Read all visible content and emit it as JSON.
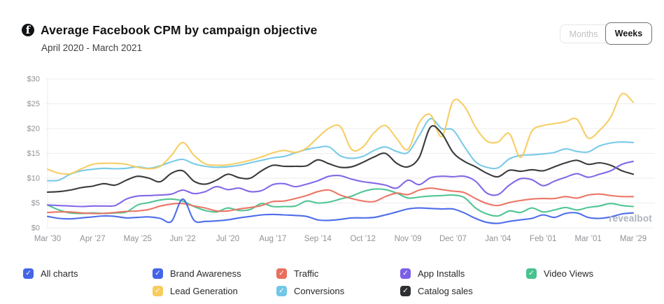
{
  "header": {
    "title": "Average Facebook CPM by campaign objective",
    "subtitle": "April 2020 - March 2021",
    "brand_icon": "facebook-icon",
    "toggle": {
      "options": [
        "Months",
        "Weeks"
      ],
      "selected": "Weeks"
    }
  },
  "watermark": "revealbot",
  "chart_data": {
    "type": "line",
    "title": "Average Facebook CPM by campaign objective",
    "subtitle": "April 2020 - March 2021",
    "x_unit": "week",
    "points_per_series": 53,
    "x_tick_labels": [
      "Mar ’30",
      "Apr ’27",
      "May ’25",
      "Jun ’22",
      "Jul ’20",
      "Aug ’17",
      "Sep ’14",
      "Oct ’12",
      "Nov ’09",
      "Dec ’07",
      "Jan ’04",
      "Feb ’01",
      "Mar ’01",
      "Mar ’29"
    ],
    "x_ticks_every_n_points": 4,
    "y_tick_labels": [
      "$0",
      "$5",
      "$10",
      "$15",
      "$20",
      "$25",
      "$30"
    ],
    "ylim": [
      0,
      30
    ],
    "grid": "horizontal",
    "legend_position": "bottom",
    "series": [
      {
        "name": "Brand Awareness",
        "color": "#4565e8",
        "values": [
          2.3,
          1.9,
          1.8,
          2.0,
          2.2,
          2.4,
          2.3,
          2.0,
          2.1,
          2.2,
          1.9,
          1.3,
          5.8,
          1.5,
          1.3,
          1.4,
          1.6,
          2.0,
          2.3,
          2.6,
          2.7,
          2.6,
          2.5,
          2.3,
          1.6,
          1.5,
          1.7,
          2.0,
          2.0,
          2.1,
          2.6,
          3.2,
          3.8,
          4.0,
          3.9,
          3.8,
          3.8,
          3.0,
          1.9,
          1.1,
          0.9,
          1.3,
          1.6,
          1.9,
          2.6,
          2.1,
          2.9,
          3.0,
          2.1,
          1.9,
          2.2,
          2.8,
          3.0
        ]
      },
      {
        "name": "Traffic",
        "color": "#ea6f5e",
        "values": [
          3.1,
          3.2,
          3.2,
          3.0,
          2.9,
          2.9,
          3.1,
          3.3,
          3.4,
          3.7,
          4.4,
          4.8,
          4.9,
          4.4,
          4.0,
          3.4,
          3.4,
          3.8,
          4.1,
          4.5,
          5.3,
          5.4,
          5.9,
          6.5,
          7.3,
          7.6,
          6.6,
          5.9,
          5.4,
          5.3,
          6.3,
          7.0,
          6.7,
          7.6,
          8.0,
          7.7,
          7.4,
          7.1,
          5.9,
          4.9,
          4.5,
          5.1,
          5.5,
          5.8,
          5.9,
          5.9,
          6.3,
          6.0,
          6.6,
          6.8,
          6.5,
          6.3,
          6.3
        ]
      },
      {
        "name": "App Installs",
        "color": "#7c60e6",
        "values": [
          4.6,
          4.5,
          4.4,
          4.3,
          4.4,
          4.4,
          4.5,
          5.8,
          6.4,
          6.5,
          6.6,
          6.8,
          7.6,
          6.9,
          7.3,
          8.3,
          7.7,
          8.0,
          7.3,
          7.5,
          8.7,
          8.9,
          8.3,
          8.8,
          9.5,
          10.4,
          10.5,
          9.8,
          9.3,
          9.0,
          8.6,
          8.0,
          9.6,
          8.7,
          10.1,
          10.4,
          10.3,
          10.4,
          9.4,
          7.0,
          6.7,
          8.6,
          9.9,
          9.7,
          8.5,
          9.4,
          10.2,
          10.9,
          10.2,
          10.8,
          11.5,
          12.8,
          13.4
        ]
      },
      {
        "name": "Video Views",
        "color": "#47c28e",
        "values": [
          4.6,
          3.6,
          3.0,
          2.9,
          3.0,
          2.9,
          3.0,
          3.2,
          4.6,
          5.1,
          5.6,
          5.8,
          5.4,
          4.3,
          3.5,
          3.2,
          4.0,
          3.5,
          3.7,
          4.9,
          4.3,
          4.3,
          4.4,
          5.4,
          5.0,
          5.2,
          5.8,
          6.4,
          7.3,
          7.8,
          7.7,
          7.0,
          6.0,
          6.2,
          6.4,
          6.5,
          6.6,
          6.1,
          4.0,
          2.8,
          2.4,
          3.4,
          3.1,
          4.0,
          3.2,
          3.6,
          4.1,
          3.6,
          4.1,
          4.4,
          4.9,
          4.5,
          4.3
        ]
      },
      {
        "name": "Lead Generation",
        "color": "#f7cb5c",
        "values": [
          11.8,
          11.0,
          10.9,
          11.9,
          12.8,
          13.0,
          13.0,
          12.8,
          12.2,
          11.9,
          12.4,
          14.6,
          17.2,
          14.6,
          12.9,
          12.6,
          12.7,
          13.1,
          13.6,
          14.3,
          15.1,
          15.6,
          15.2,
          16.1,
          18.2,
          20.1,
          20.4,
          15.8,
          16.3,
          19.2,
          20.6,
          18.0,
          15.8,
          21.2,
          22.8,
          18.4,
          25.5,
          24.5,
          20.3,
          17.5,
          17.3,
          19.0,
          14.2,
          19.5,
          20.6,
          21.0,
          21.4,
          21.9,
          18.1,
          19.6,
          22.3,
          27.0,
          25.3
        ]
      },
      {
        "name": "Conversions",
        "color": "#72c7e6",
        "values": [
          9.5,
          9.6,
          10.8,
          11.5,
          11.8,
          12.0,
          11.9,
          12.0,
          12.3,
          12.0,
          12.5,
          13.3,
          13.8,
          12.9,
          12.4,
          12.2,
          12.3,
          12.6,
          13.1,
          13.6,
          14.1,
          14.4,
          15.1,
          15.8,
          16.2,
          16.3,
          14.5,
          14.0,
          14.4,
          15.6,
          16.3,
          15.4,
          15.2,
          18.6,
          22.0,
          20.0,
          19.7,
          16.4,
          13.3,
          12.2,
          12.1,
          13.9,
          14.6,
          14.7,
          14.9,
          15.2,
          15.9,
          15.4,
          15.3,
          16.5,
          17.1,
          17.3,
          17.2
        ]
      },
      {
        "name": "Catalog sales",
        "color": "#2e2f31",
        "values": [
          7.2,
          7.3,
          7.6,
          8.1,
          8.4,
          8.9,
          8.6,
          9.6,
          10.4,
          10.0,
          9.3,
          11.0,
          11.5,
          9.4,
          8.8,
          9.6,
          10.8,
          10.1,
          10.0,
          11.5,
          12.6,
          12.4,
          12.4,
          12.5,
          13.7,
          12.9,
          12.2,
          12.3,
          13.2,
          14.3,
          15.0,
          13.0,
          12.3,
          14.2,
          20.3,
          19.0,
          15.2,
          13.4,
          12.3,
          11.0,
          10.3,
          11.6,
          11.4,
          11.7,
          11.5,
          12.3,
          13.1,
          13.6,
          12.8,
          13.1,
          12.6,
          11.5,
          10.8
        ]
      }
    ],
    "draw_order": [
      "Video Views",
      "Traffic",
      "Conversions",
      "Lead Generation",
      "Catalog sales",
      "App Installs",
      "Brand Awareness"
    ]
  },
  "legend": {
    "items": [
      {
        "label": "All charts",
        "color": "#4565e8",
        "checked": true,
        "col": 0,
        "row": 0
      },
      {
        "label": "Brand Awareness",
        "color": "#4565e8",
        "checked": true,
        "col": 1,
        "row": 0
      },
      {
        "label": "Traffic",
        "color": "#ea6f5e",
        "checked": true,
        "col": 2,
        "row": 0
      },
      {
        "label": "App Installs",
        "color": "#7c60e6",
        "checked": true,
        "col": 3,
        "row": 0
      },
      {
        "label": "Video Views",
        "color": "#47c28e",
        "checked": true,
        "col": 4,
        "row": 0
      },
      {
        "label": "Lead Generation",
        "color": "#f7cb5c",
        "checked": true,
        "col": 1,
        "row": 1
      },
      {
        "label": "Conversions",
        "color": "#72c7e6",
        "checked": true,
        "col": 2,
        "row": 1
      },
      {
        "label": "Catalog sales",
        "color": "#2e2f31",
        "checked": true,
        "col": 3,
        "row": 1
      }
    ],
    "check_glyph": "✓"
  }
}
